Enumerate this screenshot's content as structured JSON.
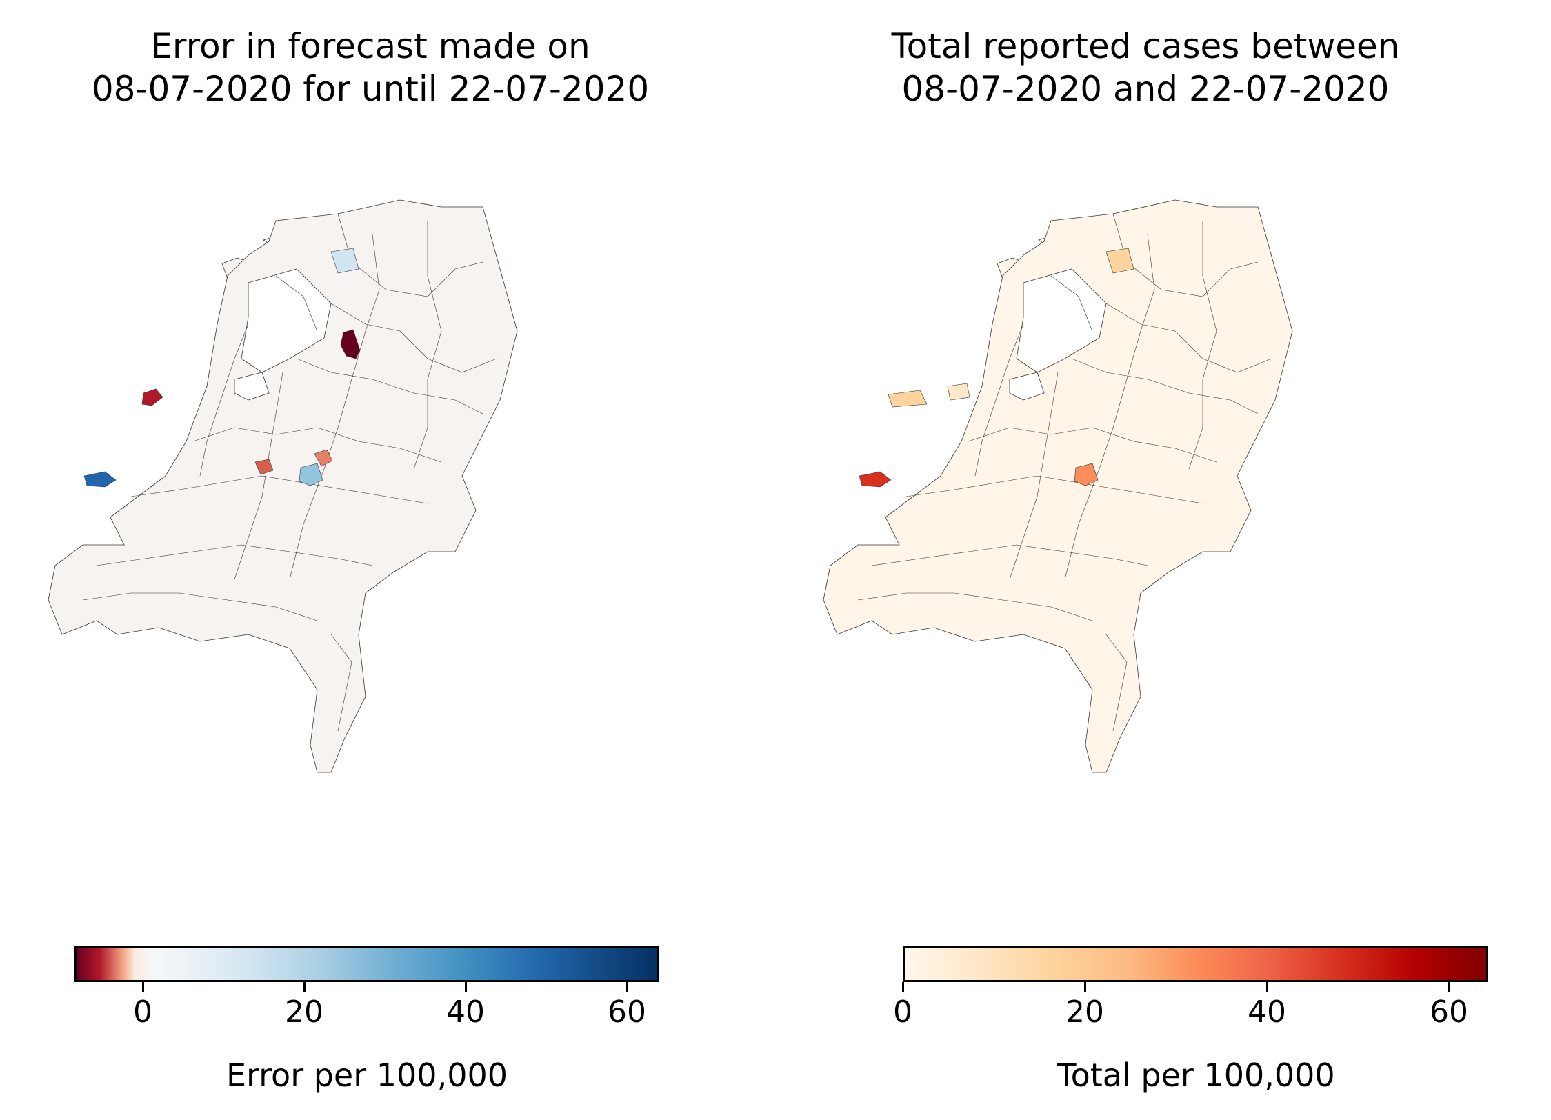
{
  "left_panel": {
    "title": "Error in forecast made on\n08-07-2020 for until 22-07-2020",
    "colorbar_label": "Error per 100,000",
    "ticks": [
      "0",
      "20",
      "40",
      "60"
    ],
    "colormap": "RdBu",
    "range": [
      -8,
      64
    ]
  },
  "right_panel": {
    "title": "Total reported cases between\n 08-07-2020 and 22-07-2020",
    "colorbar_label": "Total per 100,000",
    "ticks": [
      "0",
      "20",
      "40",
      "60"
    ],
    "colormap": "OrRd",
    "range": [
      0,
      64
    ]
  },
  "colors": {
    "border": "#333333",
    "left_base": "#f7f4f2",
    "right_base": "#fff5e8"
  }
}
